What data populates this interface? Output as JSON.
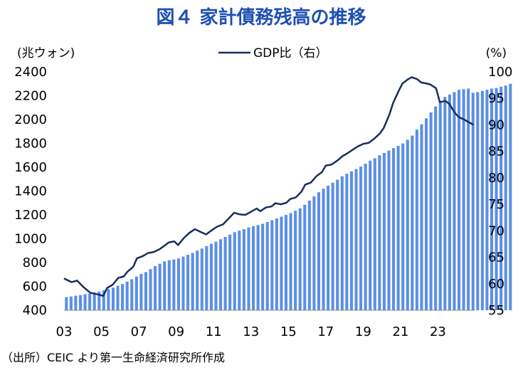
{
  "chart_data": {
    "type": "bar",
    "title": "図４ 家計債務残高の推移",
    "left_unit": "(兆ウォン)",
    "right_unit": "(%)",
    "legend": [
      {
        "name": "GDP比（右）",
        "type": "line",
        "color": "#1a2d5e"
      }
    ],
    "x_tick_labels": [
      "03",
      "05",
      "07",
      "09",
      "11",
      "13",
      "15",
      "17",
      "19",
      "21",
      "23"
    ],
    "y_left": {
      "min": 400,
      "max": 2400,
      "step": 200
    },
    "y_right": {
      "min": 55,
      "max": 100,
      "step": 5
    },
    "left_tick_labels": [
      "2400",
      "2200",
      "2000",
      "1800",
      "1600",
      "1400",
      "1200",
      "1000",
      "800",
      "600",
      "400"
    ],
    "right_tick_labels": [
      "100",
      "95",
      "90",
      "85",
      "80",
      "75",
      "70",
      "65",
      "60",
      "55"
    ],
    "x_range": [
      2003.0,
      2025.0
    ],
    "bar_series": {
      "name": "家計債務残高",
      "axis": "left",
      "color": "#5b8fe6",
      "time_start": 2003.0,
      "interval_years": 0.25,
      "values": [
        510,
        515,
        522,
        527,
        535,
        540,
        548,
        556,
        566,
        577,
        590,
        605,
        620,
        640,
        660,
        683,
        705,
        720,
        745,
        770,
        790,
        810,
        820,
        826,
        835,
        850,
        865,
        880,
        900,
        918,
        938,
        958,
        975,
        995,
        1015,
        1035,
        1055,
        1068,
        1080,
        1095,
        1105,
        1115,
        1125,
        1140,
        1155,
        1170,
        1185,
        1200,
        1215,
        1235,
        1255,
        1285,
        1320,
        1355,
        1390,
        1420,
        1445,
        1470,
        1495,
        1525,
        1545,
        1565,
        1585,
        1605,
        1630,
        1655,
        1675,
        1700,
        1720,
        1740,
        1760,
        1780,
        1800,
        1830,
        1865,
        1915,
        1960,
        2010,
        2060,
        2110,
        2155,
        2190,
        2210,
        2230,
        2250,
        2255,
        2260,
        2225,
        2230,
        2240,
        2250,
        2260,
        2265,
        2275,
        2285,
        2300
      ]
    },
    "line_series": {
      "name": "GDP比（右）",
      "axis": "right",
      "color": "#1a2d5e",
      "points": [
        [
          2003.0,
          61.0
        ],
        [
          2003.4,
          60.3
        ],
        [
          2003.7,
          60.6
        ],
        [
          2004.0,
          59.5
        ],
        [
          2004.4,
          58.3
        ],
        [
          2004.8,
          58.0
        ],
        [
          2005.1,
          57.7
        ],
        [
          2005.3,
          59.2
        ],
        [
          2005.6,
          59.8
        ],
        [
          2005.9,
          61.1
        ],
        [
          2006.2,
          61.4
        ],
        [
          2006.4,
          62.3
        ],
        [
          2006.7,
          63.2
        ],
        [
          2006.9,
          64.8
        ],
        [
          2007.2,
          65.2
        ],
        [
          2007.5,
          65.8
        ],
        [
          2007.8,
          66.0
        ],
        [
          2008.1,
          66.5
        ],
        [
          2008.3,
          67.0
        ],
        [
          2008.6,
          67.8
        ],
        [
          2008.9,
          68.0
        ],
        [
          2009.1,
          67.3
        ],
        [
          2009.4,
          68.6
        ],
        [
          2009.7,
          69.6
        ],
        [
          2010.0,
          70.3
        ],
        [
          2010.3,
          69.8
        ],
        [
          2010.6,
          69.3
        ],
        [
          2010.9,
          70.1
        ],
        [
          2011.2,
          70.8
        ],
        [
          2011.5,
          71.2
        ],
        [
          2011.8,
          72.3
        ],
        [
          2012.1,
          73.4
        ],
        [
          2012.4,
          73.1
        ],
        [
          2012.7,
          73.0
        ],
        [
          2013.0,
          73.6
        ],
        [
          2013.3,
          74.2
        ],
        [
          2013.5,
          73.7
        ],
        [
          2013.8,
          74.4
        ],
        [
          2014.1,
          74.6
        ],
        [
          2014.3,
          75.2
        ],
        [
          2014.6,
          75.0
        ],
        [
          2014.9,
          75.3
        ],
        [
          2015.1,
          76.0
        ],
        [
          2015.4,
          76.3
        ],
        [
          2015.7,
          77.4
        ],
        [
          2015.9,
          78.7
        ],
        [
          2016.2,
          79.1
        ],
        [
          2016.5,
          80.3
        ],
        [
          2016.8,
          81.1
        ],
        [
          2017.0,
          82.3
        ],
        [
          2017.3,
          82.5
        ],
        [
          2017.6,
          83.2
        ],
        [
          2017.9,
          84.1
        ],
        [
          2018.1,
          84.5
        ],
        [
          2018.4,
          85.2
        ],
        [
          2018.7,
          85.9
        ],
        [
          2019.0,
          86.4
        ],
        [
          2019.3,
          86.6
        ],
        [
          2019.6,
          87.4
        ],
        [
          2019.9,
          88.4
        ],
        [
          2020.1,
          89.4
        ],
        [
          2020.4,
          91.9
        ],
        [
          2020.6,
          94.1
        ],
        [
          2020.9,
          96.4
        ],
        [
          2021.1,
          97.8
        ],
        [
          2021.4,
          98.6
        ],
        [
          2021.6,
          99.0
        ],
        [
          2021.9,
          98.6
        ],
        [
          2022.1,
          98.0
        ],
        [
          2022.4,
          97.8
        ],
        [
          2022.6,
          97.6
        ],
        [
          2022.9,
          96.9
        ],
        [
          2023.1,
          94.3
        ],
        [
          2023.4,
          94.5
        ],
        [
          2023.6,
          94.0
        ],
        [
          2023.9,
          92.3
        ],
        [
          2024.1,
          91.5
        ],
        [
          2024.4,
          91.0
        ],
        [
          2024.6,
          90.6
        ],
        [
          2024.9,
          90.0
        ]
      ]
    }
  },
  "source_note": "（出所）CEIC より第一生命経済研究所作成"
}
